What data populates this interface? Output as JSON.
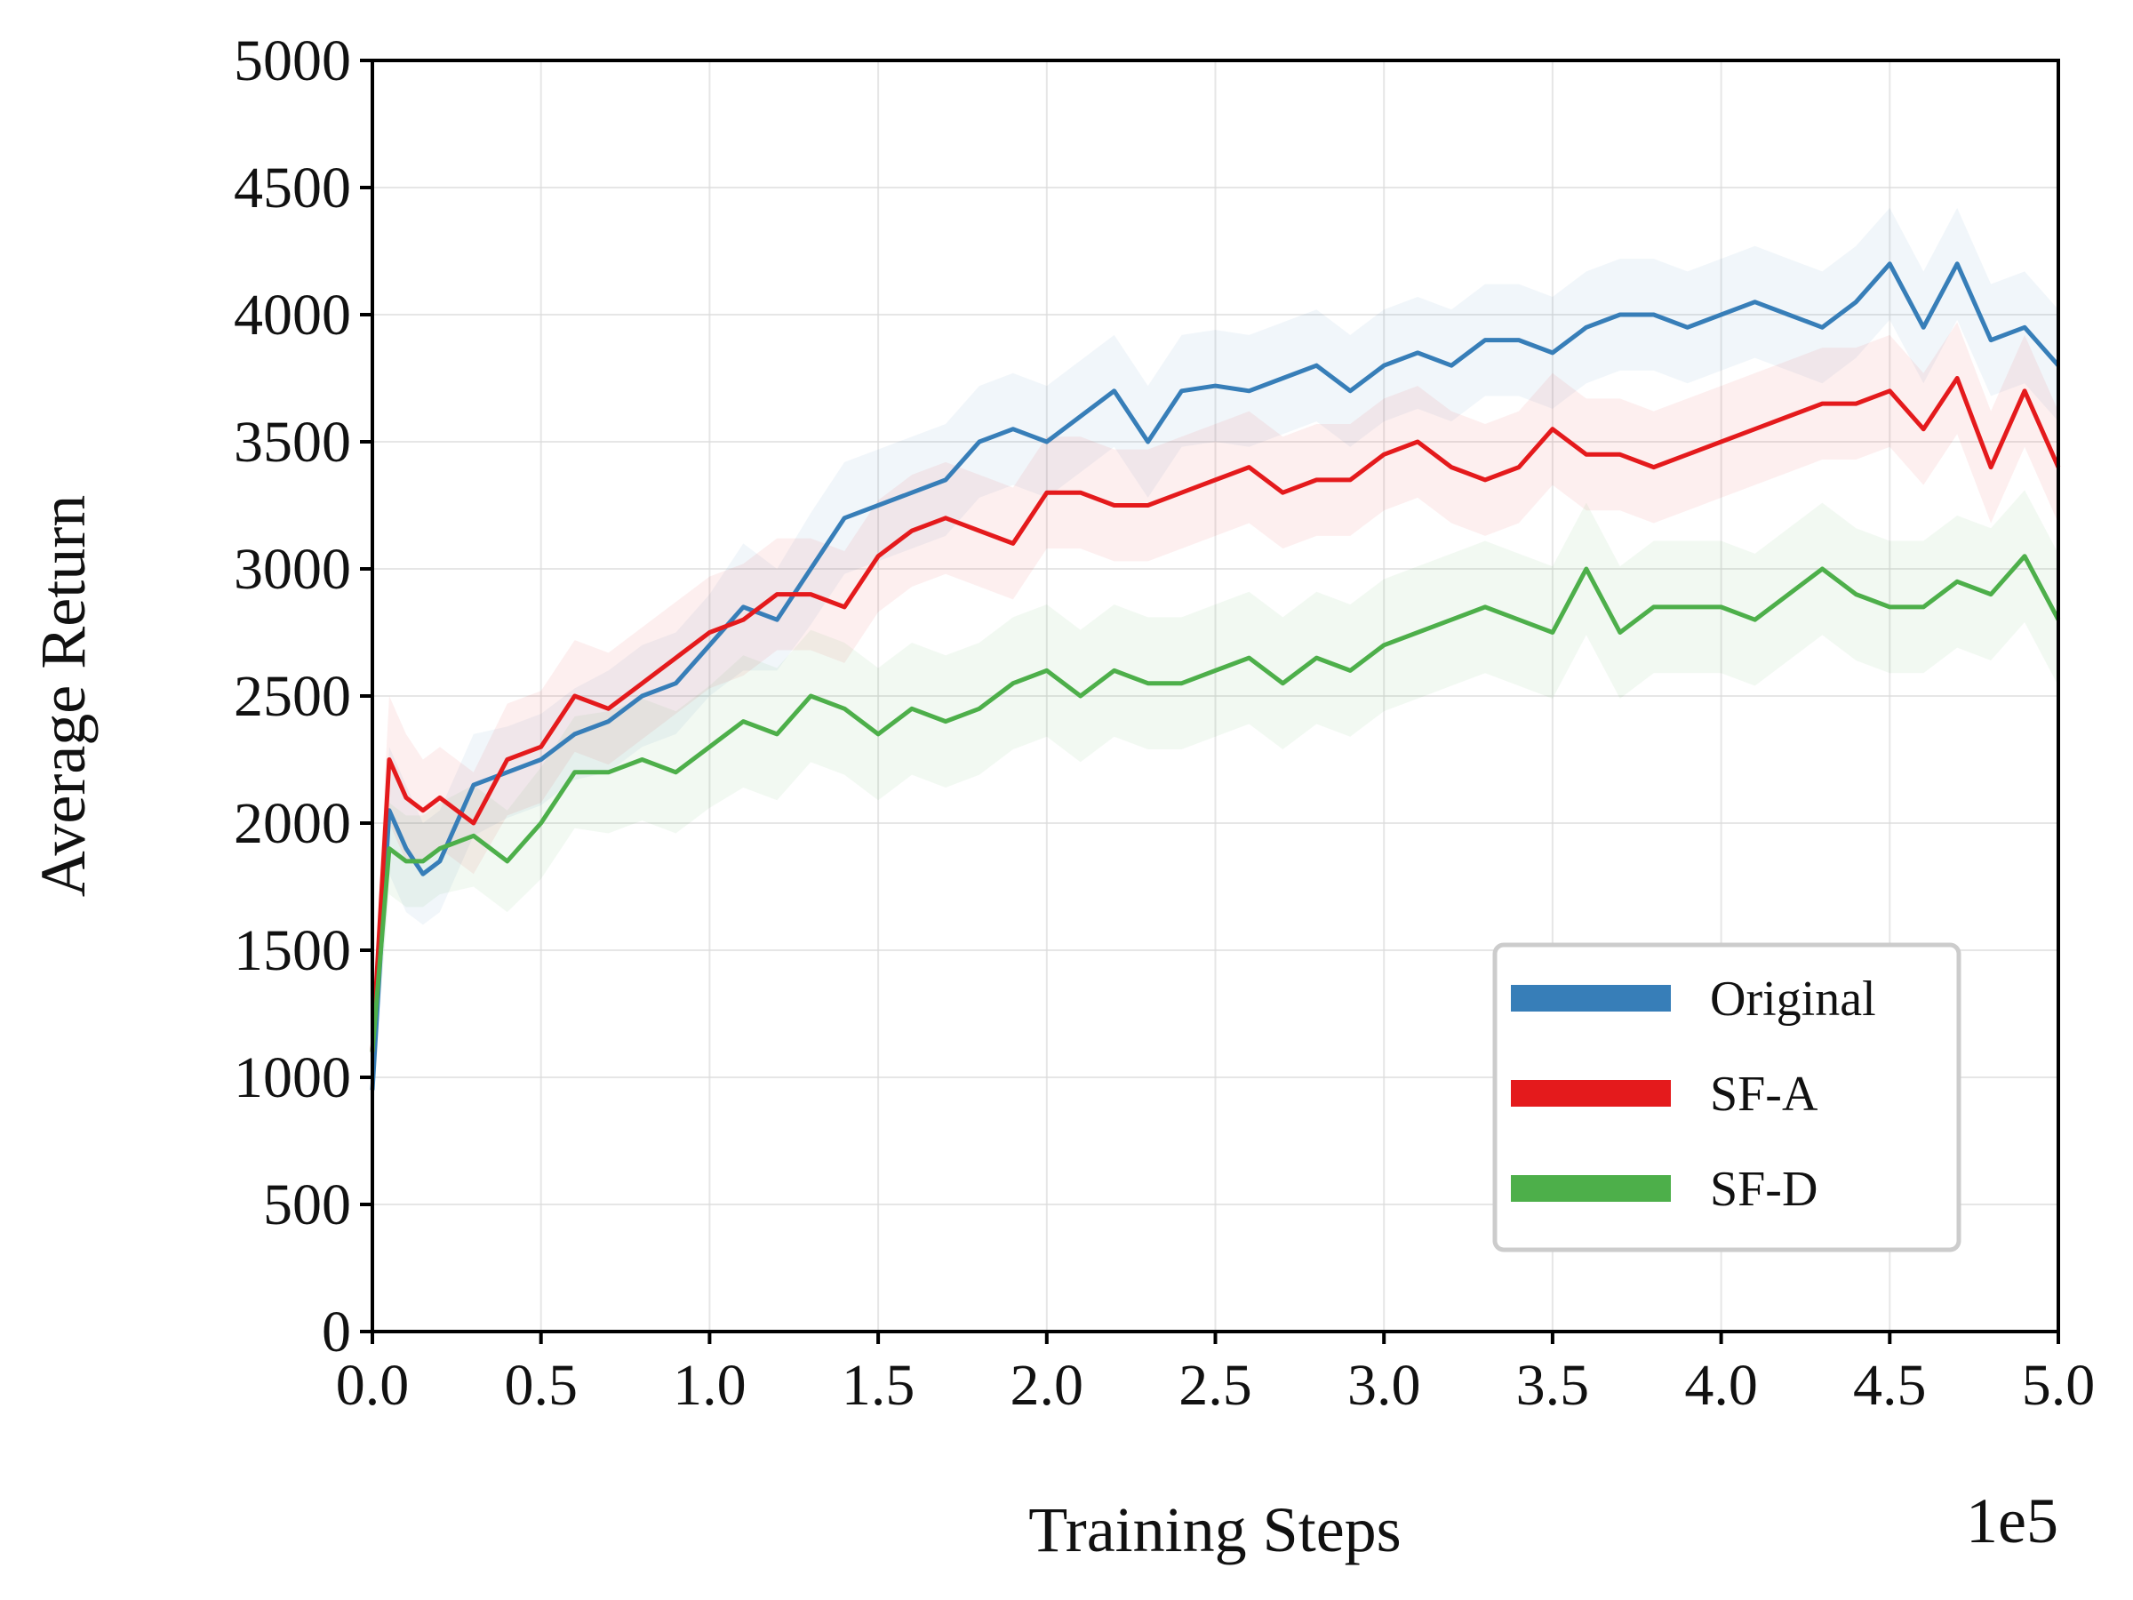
{
  "chart_data": {
    "type": "line",
    "title": "",
    "xlabel": "Training Steps",
    "ylabel": "Average Return",
    "x_offset_text": "1e5",
    "xlim": [
      0,
      5.0
    ],
    "ylim": [
      0,
      5000
    ],
    "xticks": [
      "0.0",
      "0.5",
      "1.0",
      "1.5",
      "2.0",
      "2.5",
      "3.0",
      "3.5",
      "4.0",
      "4.5",
      "5.0"
    ],
    "yticks": [
      "0",
      "500",
      "1000",
      "1500",
      "2000",
      "2500",
      "3000",
      "3500",
      "4000",
      "4500",
      "5000"
    ],
    "grid": true,
    "legend_position": "lower-right",
    "series": [
      {
        "name": "Original",
        "color": "#377eb8",
        "x": [
          0.0,
          0.05,
          0.1,
          0.15,
          0.2,
          0.3,
          0.4,
          0.5,
          0.6,
          0.7,
          0.8,
          0.9,
          1.0,
          1.1,
          1.2,
          1.3,
          1.4,
          1.5,
          1.6,
          1.7,
          1.8,
          1.9,
          2.0,
          2.1,
          2.2,
          2.3,
          2.4,
          2.5,
          2.6,
          2.7,
          2.8,
          2.9,
          3.0,
          3.1,
          3.2,
          3.3,
          3.4,
          3.5,
          3.6,
          3.7,
          3.8,
          3.9,
          4.0,
          4.1,
          4.2,
          4.3,
          4.4,
          4.5,
          4.6,
          4.7,
          4.8,
          4.9,
          5.0
        ],
        "values": [
          950,
          2050,
          1900,
          1800,
          1850,
          2150,
          2200,
          2250,
          2350,
          2400,
          2500,
          2550,
          2700,
          2850,
          2800,
          3000,
          3200,
          3250,
          3300,
          3350,
          3500,
          3550,
          3500,
          3600,
          3700,
          3500,
          3700,
          3720,
          3700,
          3750,
          3800,
          3700,
          3800,
          3850,
          3800,
          3900,
          3900,
          3850,
          3950,
          4000,
          4000,
          3950,
          4000,
          4050,
          4000,
          3950,
          4050,
          4200,
          3950,
          4200,
          3900,
          3950,
          3800
        ],
        "band": [
          150,
          250,
          250,
          200,
          200,
          200,
          180,
          180,
          180,
          200,
          200,
          200,
          200,
          250,
          200,
          220,
          220,
          220,
          220,
          220,
          220,
          220,
          220,
          220,
          220,
          220,
          220,
          220,
          220,
          220,
          220,
          220,
          220,
          220,
          220,
          220,
          220,
          220,
          220,
          220,
          220,
          220,
          220,
          220,
          220,
          220,
          220,
          220,
          220,
          220,
          220,
          220,
          220
        ]
      },
      {
        "name": "SF-A",
        "color": "#e41a1c",
        "x": [
          0.0,
          0.05,
          0.1,
          0.15,
          0.2,
          0.3,
          0.4,
          0.5,
          0.6,
          0.7,
          0.8,
          0.9,
          1.0,
          1.1,
          1.2,
          1.3,
          1.4,
          1.5,
          1.6,
          1.7,
          1.8,
          1.9,
          2.0,
          2.1,
          2.2,
          2.3,
          2.4,
          2.5,
          2.6,
          2.7,
          2.8,
          2.9,
          3.0,
          3.1,
          3.2,
          3.3,
          3.4,
          3.5,
          3.6,
          3.7,
          3.8,
          3.9,
          4.0,
          4.1,
          4.2,
          4.3,
          4.4,
          4.5,
          4.6,
          4.7,
          4.8,
          4.9,
          5.0
        ],
        "values": [
          1100,
          2250,
          2100,
          2050,
          2100,
          2000,
          2250,
          2300,
          2500,
          2450,
          2550,
          2650,
          2750,
          2800,
          2900,
          2900,
          2850,
          3050,
          3150,
          3200,
          3150,
          3100,
          3300,
          3300,
          3250,
          3250,
          3300,
          3350,
          3400,
          3300,
          3350,
          3350,
          3450,
          3500,
          3400,
          3350,
          3400,
          3550,
          3450,
          3450,
          3400,
          3450,
          3500,
          3550,
          3600,
          3650,
          3650,
          3700,
          3550,
          3750,
          3400,
          3700,
          3400
        ],
        "band": [
          150,
          250,
          250,
          200,
          200,
          200,
          220,
          220,
          220,
          220,
          220,
          220,
          220,
          220,
          220,
          220,
          220,
          220,
          220,
          220,
          220,
          220,
          220,
          220,
          220,
          220,
          220,
          220,
          220,
          220,
          220,
          220,
          220,
          220,
          220,
          220,
          220,
          220,
          220,
          220,
          220,
          220,
          220,
          220,
          220,
          220,
          220,
          220,
          220,
          220,
          220,
          220,
          220
        ]
      },
      {
        "name": "SF-D",
        "color": "#4daf4a",
        "x": [
          0.0,
          0.05,
          0.1,
          0.15,
          0.2,
          0.3,
          0.4,
          0.5,
          0.6,
          0.7,
          0.8,
          0.9,
          1.0,
          1.1,
          1.2,
          1.3,
          1.4,
          1.5,
          1.6,
          1.7,
          1.8,
          1.9,
          2.0,
          2.1,
          2.2,
          2.3,
          2.4,
          2.5,
          2.6,
          2.7,
          2.8,
          2.9,
          3.0,
          3.1,
          3.2,
          3.3,
          3.4,
          3.5,
          3.6,
          3.7,
          3.8,
          3.9,
          4.0,
          4.1,
          4.2,
          4.3,
          4.4,
          4.5,
          4.6,
          4.7,
          4.8,
          4.9,
          5.0
        ],
        "values": [
          1100,
          1900,
          1850,
          1850,
          1900,
          1950,
          1850,
          2000,
          2200,
          2200,
          2250,
          2200,
          2300,
          2400,
          2350,
          2500,
          2450,
          2350,
          2450,
          2400,
          2450,
          2550,
          2600,
          2500,
          2600,
          2550,
          2550,
          2600,
          2650,
          2550,
          2650,
          2600,
          2700,
          2750,
          2800,
          2850,
          2800,
          2750,
          3000,
          2750,
          2850,
          2850,
          2850,
          2800,
          2900,
          3000,
          2900,
          2850,
          2850,
          2950,
          2900,
          3050,
          2800
        ],
        "band": [
          150,
          180,
          180,
          180,
          180,
          200,
          200,
          220,
          220,
          240,
          240,
          240,
          240,
          260,
          260,
          260,
          260,
          260,
          260,
          260,
          260,
          260,
          260,
          260,
          260,
          260,
          260,
          260,
          260,
          260,
          260,
          260,
          260,
          260,
          260,
          260,
          260,
          260,
          260,
          260,
          260,
          260,
          260,
          260,
          260,
          260,
          260,
          260,
          260,
          260,
          260,
          260,
          260
        ]
      }
    ]
  }
}
